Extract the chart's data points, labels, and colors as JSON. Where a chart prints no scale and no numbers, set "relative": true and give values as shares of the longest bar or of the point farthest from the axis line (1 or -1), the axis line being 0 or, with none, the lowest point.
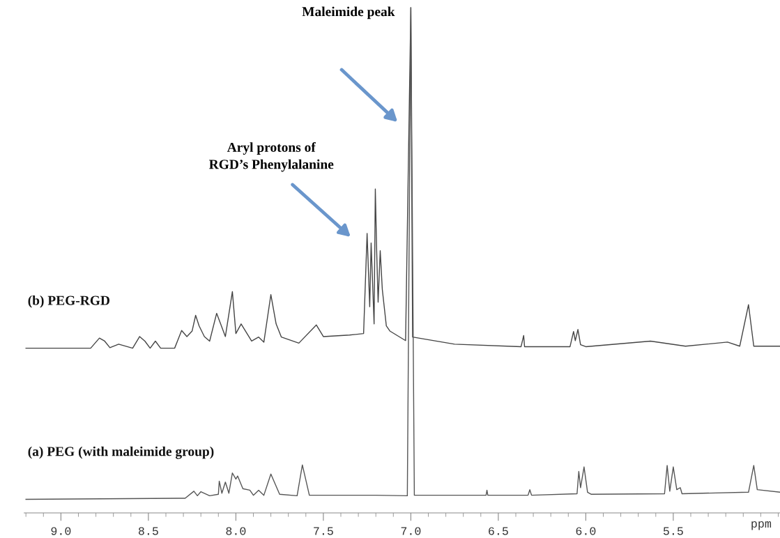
{
  "chart_data": {
    "type": "line",
    "relative": true,
    "xlabel": "ppm",
    "xlim": [
      9.21,
      4.89
    ],
    "xticks": [
      {
        "value": 9.2,
        "label": null
      },
      {
        "value": 9.1,
        "label": null
      },
      {
        "value": 9.0,
        "label": "9.0"
      },
      {
        "value": 8.9,
        "label": null
      },
      {
        "value": 8.8,
        "label": null
      },
      {
        "value": 8.7,
        "label": null
      },
      {
        "value": 8.6,
        "label": null
      },
      {
        "value": 8.5,
        "label": "8.5"
      },
      {
        "value": 8.4,
        "label": null
      },
      {
        "value": 8.3,
        "label": null
      },
      {
        "value": 8.2,
        "label": null
      },
      {
        "value": 8.1,
        "label": null
      },
      {
        "value": 8.0,
        "label": "8.0"
      },
      {
        "value": 7.9,
        "label": null
      },
      {
        "value": 7.8,
        "label": null
      },
      {
        "value": 7.7,
        "label": null
      },
      {
        "value": 7.6,
        "label": null
      },
      {
        "value": 7.5,
        "label": "7.5"
      },
      {
        "value": 7.4,
        "label": null
      },
      {
        "value": 7.3,
        "label": null
      },
      {
        "value": 7.2,
        "label": null
      },
      {
        "value": 7.1,
        "label": null
      },
      {
        "value": 7.0,
        "label": "7.0"
      },
      {
        "value": 6.9,
        "label": null
      },
      {
        "value": 6.8,
        "label": null
      },
      {
        "value": 6.7,
        "label": null
      },
      {
        "value": 6.6,
        "label": null
      },
      {
        "value": 6.5,
        "label": "6.5"
      },
      {
        "value": 6.4,
        "label": null
      },
      {
        "value": 6.3,
        "label": null
      },
      {
        "value": 6.2,
        "label": null
      },
      {
        "value": 6.1,
        "label": null
      },
      {
        "value": 6.0,
        "label": "6.0"
      },
      {
        "value": 5.9,
        "label": null
      },
      {
        "value": 5.8,
        "label": null
      },
      {
        "value": 5.7,
        "label": null
      },
      {
        "value": 5.6,
        "label": null
      },
      {
        "value": 5.5,
        "label": "5.5"
      },
      {
        "value": 5.4,
        "label": null
      },
      {
        "value": 5.3,
        "label": null
      },
      {
        "value": 5.2,
        "label": null
      },
      {
        "value": 5.1,
        "label": null
      },
      {
        "value": 5.0,
        "label": null
      },
      {
        "value": 4.9,
        "label": null
      }
    ],
    "grid": false,
    "legend": false,
    "marker": "none",
    "line_style": "solid",
    "series": [
      {
        "name": "(b) PEG-RGD",
        "color": "#444444",
        "x": [
          9.2,
          8.83,
          8.78,
          8.75,
          8.72,
          8.67,
          8.59,
          8.55,
          8.52,
          8.49,
          8.46,
          8.43,
          8.35,
          8.31,
          8.28,
          8.25,
          8.23,
          8.21,
          8.18,
          8.15,
          8.11,
          8.06,
          8.02,
          8.0,
          7.97,
          7.91,
          7.87,
          7.84,
          7.8,
          7.77,
          7.74,
          7.64,
          7.54,
          7.5,
          7.35,
          7.27,
          7.25,
          7.235,
          7.227,
          7.21,
          7.203,
          7.195,
          7.187,
          7.175,
          7.163,
          7.14,
          7.12,
          7.03,
          7.0,
          6.99,
          6.75,
          6.37,
          6.355,
          6.35,
          6.09,
          6.07,
          6.06,
          6.045,
          6.03,
          6.0,
          5.63,
          5.43,
          5.19,
          5.12,
          5.07,
          5.04,
          4.89
        ],
        "values": [
          0.326,
          0.326,
          0.346,
          0.34,
          0.327,
          0.334,
          0.326,
          0.349,
          0.34,
          0.326,
          0.34,
          0.326,
          0.326,
          0.361,
          0.349,
          0.36,
          0.391,
          0.37,
          0.349,
          0.34,
          0.395,
          0.349,
          0.438,
          0.355,
          0.374,
          0.34,
          0.348,
          0.338,
          0.432,
          0.374,
          0.348,
          0.336,
          0.372,
          0.349,
          0.352,
          0.355,
          0.553,
          0.408,
          0.534,
          0.374,
          0.641,
          0.515,
          0.417,
          0.519,
          0.442,
          0.37,
          0.36,
          0.341,
          1.0,
          0.348,
          0.334,
          0.329,
          0.351,
          0.329,
          0.329,
          0.359,
          0.341,
          0.363,
          0.333,
          0.329,
          0.34,
          0.33,
          0.338,
          0.33,
          0.412,
          0.33,
          0.33
        ]
      },
      {
        "name": "(a) PEG (with maleimide group)",
        "color": "#555555",
        "x": [
          9.2,
          8.29,
          8.24,
          8.22,
          8.2,
          8.15,
          8.1,
          8.095,
          8.08,
          8.06,
          8.04,
          8.02,
          8.0,
          7.99,
          7.96,
          7.92,
          7.9,
          7.87,
          7.84,
          7.8,
          7.75,
          7.65,
          7.62,
          7.58,
          7.25,
          7.2,
          7.02,
          7.0,
          6.98,
          6.57,
          6.565,
          6.56,
          6.33,
          6.32,
          6.31,
          6.05,
          6.04,
          6.03,
          6.01,
          5.99,
          5.97,
          5.55,
          5.535,
          5.52,
          5.5,
          5.48,
          5.46,
          5.45,
          5.07,
          5.04,
          5.02,
          4.89
        ],
        "values": [
          0.027,
          0.029,
          0.043,
          0.034,
          0.042,
          0.034,
          0.037,
          0.063,
          0.039,
          0.061,
          0.039,
          0.079,
          0.067,
          0.073,
          0.048,
          0.045,
          0.035,
          0.045,
          0.035,
          0.077,
          0.037,
          0.034,
          0.095,
          0.035,
          0.035,
          0.035,
          0.034,
          1.0,
          0.035,
          0.035,
          0.045,
          0.035,
          0.035,
          0.046,
          0.035,
          0.038,
          0.082,
          0.05,
          0.091,
          0.041,
          0.037,
          0.038,
          0.094,
          0.043,
          0.091,
          0.046,
          0.05,
          0.038,
          0.041,
          0.094,
          0.046,
          0.041
        ]
      }
    ],
    "annotations": [
      "Maleimide peak",
      "Aryl protons of\nRGD’s Phenylalanine"
    ]
  }
}
